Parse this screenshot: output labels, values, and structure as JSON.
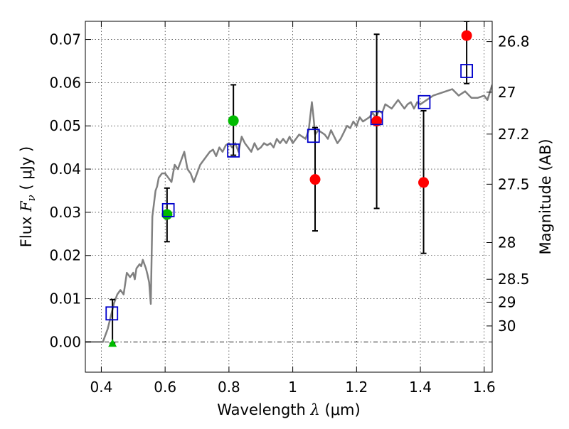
{
  "chart_data": {
    "type": "scatter",
    "title": "",
    "xlabel": {
      "prefix": "Wavelength  ",
      "symbol": "λ",
      "unit": " (μm)"
    },
    "ylabel": {
      "prefix": "Flux  ",
      "symbol": "F",
      "subscript": "ν",
      "unit": "  ( μJy )"
    },
    "y2label": "Magnitude (AB)",
    "xlim": [
      0.35,
      1.625
    ],
    "ylim": [
      -0.007,
      0.0742
    ],
    "grid": true,
    "x_ticks": [
      {
        "value": 0.4,
        "label": "0.4"
      },
      {
        "value": 0.6,
        "label": "0.6"
      },
      {
        "value": 0.8,
        "label": "0.8"
      },
      {
        "value": 1.0,
        "label": "1"
      },
      {
        "value": 1.2,
        "label": "1.2"
      },
      {
        "value": 1.4,
        "label": "1.4"
      },
      {
        "value": 1.6,
        "label": "1.6"
      }
    ],
    "y_ticks": [
      {
        "value": 0.0,
        "label": "0.00"
      },
      {
        "value": 0.01,
        "label": "0.01"
      },
      {
        "value": 0.02,
        "label": "0.02"
      },
      {
        "value": 0.03,
        "label": "0.03"
      },
      {
        "value": 0.04,
        "label": "0.04"
      },
      {
        "value": 0.05,
        "label": "0.05"
      },
      {
        "value": 0.06,
        "label": "0.06"
      },
      {
        "value": 0.07,
        "label": "0.07"
      }
    ],
    "magnitude_ticks": [
      {
        "label": "26.8",
        "flux": 0.0695
      },
      {
        "label": "27",
        "flux": 0.0578
      },
      {
        "label": "27.2",
        "flux": 0.0481
      },
      {
        "label": "27.5",
        "flux": 0.0365
      },
      {
        "label": "28",
        "flux": 0.023
      },
      {
        "label": "28.5",
        "flux": 0.0145
      },
      {
        "label": "29",
        "flux": 0.0092
      },
      {
        "label": "30",
        "flux": 0.0037
      }
    ],
    "zero_line": 0.0,
    "colors": {
      "model": "#808080",
      "green": "#00bb00",
      "red": "#ff0000",
      "blue": "#0000cc",
      "errorbar": "#000000"
    },
    "model_spectrum": {
      "x": [
        0.35,
        0.405,
        0.41,
        0.42,
        0.43,
        0.44,
        0.45,
        0.46,
        0.47,
        0.48,
        0.485,
        0.49,
        0.5,
        0.505,
        0.51,
        0.52,
        0.525,
        0.53,
        0.54,
        0.545,
        0.55,
        0.555,
        0.56,
        0.57,
        0.575,
        0.58,
        0.59,
        0.6,
        0.61,
        0.62,
        0.63,
        0.64,
        0.65,
        0.66,
        0.67,
        0.68,
        0.69,
        0.7,
        0.71,
        0.72,
        0.73,
        0.74,
        0.75,
        0.76,
        0.77,
        0.78,
        0.79,
        0.8,
        0.81,
        0.82,
        0.83,
        0.84,
        0.85,
        0.86,
        0.87,
        0.88,
        0.89,
        0.9,
        0.91,
        0.92,
        0.93,
        0.94,
        0.95,
        0.96,
        0.97,
        0.98,
        0.99,
        1.0,
        1.01,
        1.02,
        1.03,
        1.04,
        1.05,
        1.06,
        1.065,
        1.07,
        1.08,
        1.09,
        1.1,
        1.11,
        1.12,
        1.13,
        1.14,
        1.15,
        1.16,
        1.17,
        1.18,
        1.19,
        1.2,
        1.21,
        1.22,
        1.23,
        1.24,
        1.25,
        1.26,
        1.27,
        1.28,
        1.29,
        1.3,
        1.31,
        1.32,
        1.33,
        1.34,
        1.35,
        1.36,
        1.37,
        1.38,
        1.39,
        1.4,
        1.42,
        1.44,
        1.46,
        1.48,
        1.5,
        1.52,
        1.54,
        1.56,
        1.58,
        1.6,
        1.61,
        1.625
      ],
      "y": [
        0.0,
        0.0,
        0.001,
        0.003,
        0.006,
        0.009,
        0.011,
        0.012,
        0.011,
        0.016,
        0.0155,
        0.015,
        0.016,
        0.0145,
        0.017,
        0.018,
        0.0175,
        0.019,
        0.017,
        0.0155,
        0.0138,
        0.0088,
        0.029,
        0.035,
        0.036,
        0.038,
        0.039,
        0.039,
        0.038,
        0.037,
        0.041,
        0.04,
        0.042,
        0.044,
        0.04,
        0.039,
        0.037,
        0.039,
        0.041,
        0.042,
        0.043,
        0.044,
        0.0445,
        0.043,
        0.045,
        0.044,
        0.0455,
        0.046,
        0.045,
        0.046,
        0.044,
        0.0475,
        0.046,
        0.045,
        0.044,
        0.046,
        0.0445,
        0.045,
        0.046,
        0.0455,
        0.046,
        0.045,
        0.047,
        0.046,
        0.047,
        0.046,
        0.0475,
        0.046,
        0.047,
        0.048,
        0.0475,
        0.047,
        0.049,
        0.0555,
        0.052,
        0.048,
        0.049,
        0.0485,
        0.048,
        0.047,
        0.049,
        0.0475,
        0.046,
        0.047,
        0.0485,
        0.05,
        0.0495,
        0.051,
        0.05,
        0.052,
        0.051,
        0.0515,
        0.052,
        0.053,
        0.052,
        0.0535,
        0.053,
        0.055,
        0.0545,
        0.054,
        0.055,
        0.056,
        0.055,
        0.054,
        0.055,
        0.0555,
        0.054,
        0.0555,
        0.055,
        0.056,
        0.057,
        0.0575,
        0.058,
        0.0585,
        0.057,
        0.058,
        0.0565,
        0.0565,
        0.057,
        0.056,
        0.0595
      ]
    },
    "series": [
      {
        "name": "green-detections",
        "marker": "circle",
        "points": [
          {
            "x": 0.606,
            "y": 0.0295,
            "err_low": 0.0232,
            "err_high": 0.0356
          },
          {
            "x": 0.814,
            "y": 0.0512,
            "err_low": 0.0432,
            "err_high": 0.0595
          }
        ]
      },
      {
        "name": "red-detections",
        "marker": "circle",
        "points": [
          {
            "x": 1.07,
            "y": 0.0376,
            "err_low": 0.0257,
            "err_high": 0.0496
          },
          {
            "x": 1.263,
            "y": 0.0511,
            "err_low": 0.0309,
            "err_high": 0.0712
          },
          {
            "x": 1.41,
            "y": 0.0369,
            "err_low": 0.0205,
            "err_high": 0.0535
          },
          {
            "x": 1.545,
            "y": 0.0709,
            "err_low": 0.0598,
            "err_high": 0.0742
          }
        ]
      },
      {
        "name": "green-upper-limit",
        "marker": "triangle",
        "points": [
          {
            "x": 0.435,
            "y": -0.0003,
            "err_low": -0.0003,
            "err_high": 0.0098
          }
        ]
      },
      {
        "name": "model-photometry",
        "marker": "square",
        "points": [
          {
            "x": 0.433,
            "y": 0.0066
          },
          {
            "x": 0.61,
            "y": 0.0305
          },
          {
            "x": 0.814,
            "y": 0.0443
          },
          {
            "x": 1.065,
            "y": 0.0477
          },
          {
            "x": 1.263,
            "y": 0.0518
          },
          {
            "x": 1.412,
            "y": 0.0555
          },
          {
            "x": 1.545,
            "y": 0.0627
          }
        ]
      }
    ]
  }
}
